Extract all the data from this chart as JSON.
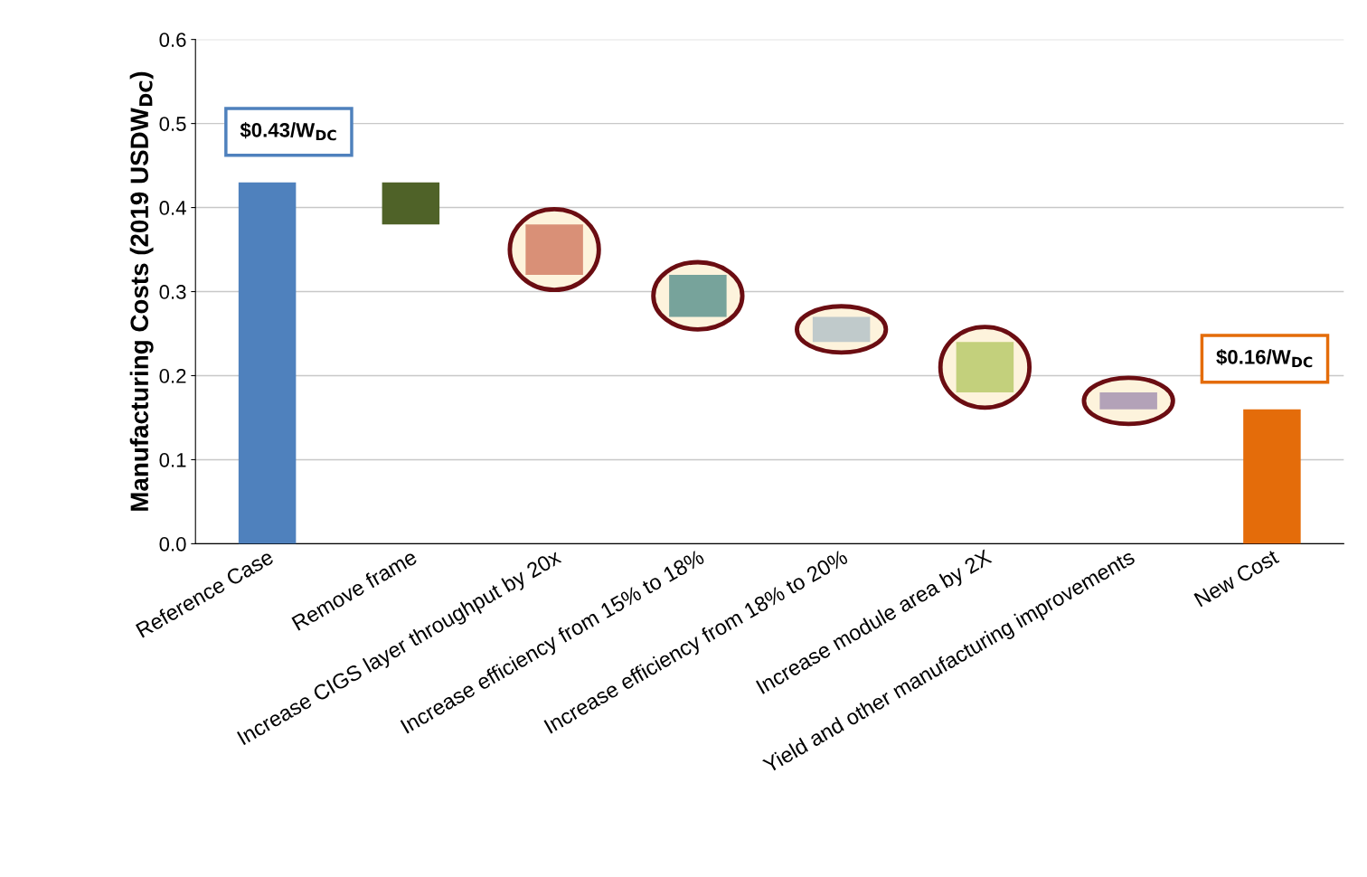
{
  "chart_data": {
    "type": "bar",
    "ylabel": "Manufacturing Costs (2019 USDW$_{DC}$)",
    "categories": [
      "Reference Case",
      "Remove frame",
      "Increase CIGS layer throughput by 20x",
      "Increase efficiency from 15% to 18%",
      "Increase efficiency from 18% to 20%",
      "Increase module area by 2X",
      "Yield and other manufacturing improvements",
      "New Cost"
    ],
    "values": [
      0.43,
      0.05,
      0.06,
      0.05,
      0.03,
      0.06,
      0.02,
      0.16
    ],
    "base": [
      0,
      0.38,
      0.32,
      0.27,
      0.24,
      0.18,
      0.16,
      0
    ],
    "colors": [
      "#4f81bd",
      "#4f6228",
      "#d99077",
      "#77a39b",
      "#c0cacb",
      "#c3d07c",
      "#b3a2b8",
      "#e46c0a"
    ],
    "value_labels": [
      "$0.43/W$_{DC}$",
      null,
      null,
      null,
      null,
      null,
      null,
      "$0.16/W$_{DC}$"
    ],
    "ylim": [
      0,
      0.6
    ],
    "yticks": [
      {
        "value": 0,
        "label": "0.0"
      },
      0.1,
      0.2,
      0.3,
      0.4,
      0.5,
      0.6
    ],
    "grid": "y"
  }
}
